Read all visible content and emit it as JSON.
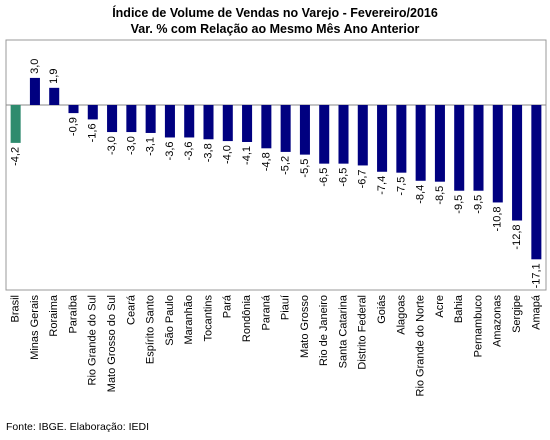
{
  "chart_data": {
    "type": "bar",
    "title": "Índice de Volume de Vendas no Varejo - Fevereiro/2016",
    "subtitle": "Var. % com Relação ao Mesmo Mês Ano Anterior",
    "categories": [
      "Brasil",
      "Minas Gerais",
      "Roraima",
      "Paraíba",
      "Rio Grande do Sul",
      "Mato Grosso do Sul",
      "Ceará",
      "Espírito Santo",
      "São Paulo",
      "Maranhão",
      "Tocantins",
      "Pará",
      "Rondônia",
      "Paraná",
      "Piauí",
      "Mato Grosso",
      "Rio de Janeiro",
      "Santa Catarina",
      "Distrito Federal",
      "Goiás",
      "Alagoas",
      "Rio Grande do Norte",
      "Acre",
      "Bahia",
      "Pernambuco",
      "Amazonas",
      "Sergipe",
      "Amapá"
    ],
    "values": [
      -4.2,
      3.0,
      1.9,
      -0.9,
      -1.6,
      -3.0,
      -3.0,
      -3.1,
      -3.6,
      -3.6,
      -3.8,
      -4.0,
      -4.1,
      -4.8,
      -5.2,
      -5.5,
      -6.5,
      -6.5,
      -6.7,
      -7.4,
      -7.5,
      -8.4,
      -8.5,
      -9.5,
      -9.5,
      -10.8,
      -12.8,
      -17.1
    ],
    "value_labels": [
      "-4,2",
      "3,0",
      "1,9",
      "-0,9",
      "-1,6",
      "-3,0",
      "-3,0",
      "-3,1",
      "-3,6",
      "-3,6",
      "-3,8",
      "-4,0",
      "-4,1",
      "-4,8",
      "-5,2",
      "-5,5",
      "-6,5",
      "-6,5",
      "-6,7",
      "-7,4",
      "-7,5",
      "-8,4",
      "-8,5",
      "-9,5",
      "-9,5",
      "-10,8",
      "-12,8",
      "-17,1"
    ],
    "colors": [
      "#2e8b6e",
      "#000080",
      "#000080",
      "#000080",
      "#000080",
      "#000080",
      "#000080",
      "#000080",
      "#000080",
      "#000080",
      "#000080",
      "#000080",
      "#000080",
      "#000080",
      "#000080",
      "#000080",
      "#000080",
      "#000080",
      "#000080",
      "#000080",
      "#000080",
      "#000080",
      "#000080",
      "#000080",
      "#000080",
      "#000080",
      "#000080",
      "#000080"
    ],
    "ylim": [
      -20.5,
      7.2
    ],
    "source": "Fonte: IBGE. Elaboração: IEDI"
  }
}
